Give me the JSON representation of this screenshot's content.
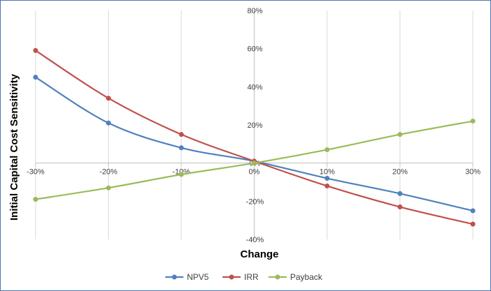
{
  "chart_data": {
    "type": "line",
    "xlabel": "Change",
    "ylabel": "Initial Capital Cost  Sensitivity",
    "x": [
      -30,
      -20,
      -10,
      0,
      10,
      20,
      30
    ],
    "x_tick_labels": [
      "-30%",
      "-20%",
      "-10%",
      "0%",
      "10%",
      "20%",
      "30%"
    ],
    "y_tick_values": [
      80,
      60,
      40,
      20,
      0,
      -20,
      -40
    ],
    "y_tick_labels": [
      "80%",
      "60%",
      "40%",
      "20%",
      "0%",
      "-20%",
      "-40%"
    ],
    "ylim": [
      -40,
      80
    ],
    "xlim": [
      -30,
      30
    ],
    "grid": "vertical",
    "legend_position": "bottom",
    "series": [
      {
        "name": "NPV5",
        "color": "#4f81bd",
        "values": [
          45,
          21,
          8,
          1,
          -8,
          -16,
          -25
        ]
      },
      {
        "name": "IRR",
        "color": "#c0504d",
        "values": [
          59,
          34,
          15,
          1,
          -12,
          -23,
          -32
        ]
      },
      {
        "name": "Payback",
        "color": "#9bbb59",
        "values": [
          -19,
          -13,
          -6,
          0,
          7,
          15,
          22
        ]
      }
    ]
  }
}
